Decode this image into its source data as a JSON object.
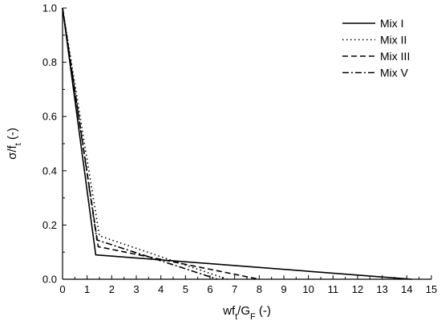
{
  "chart_data": {
    "type": "line",
    "title": "",
    "xlabel": "wf_t/G_F (-)",
    "ylabel": "σ/f_t (-)",
    "xlim": [
      0,
      15
    ],
    "ylim": [
      0,
      1.0
    ],
    "x_ticks": [
      "0",
      "1",
      "2",
      "3",
      "4",
      "5",
      "6",
      "7",
      "8",
      "9",
      "10",
      "11",
      "12",
      "13",
      "14",
      "15"
    ],
    "y_ticks": [
      "0.0",
      "0.2",
      "0.4",
      "0.6",
      "0.8",
      "1.0"
    ],
    "legend_position": "top-right",
    "grid": false,
    "series": [
      {
        "name": "Mix I",
        "style": "solid",
        "x": [
          0,
          1.35,
          14.2
        ],
        "y": [
          1.0,
          0.09,
          0.0
        ]
      },
      {
        "name": "Mix II",
        "style": "dotted",
        "x": [
          0,
          1.5,
          6.7
        ],
        "y": [
          1.0,
          0.16,
          0.0
        ]
      },
      {
        "name": "Mix III",
        "style": "dashed",
        "x": [
          0,
          1.45,
          8.0
        ],
        "y": [
          1.0,
          0.12,
          0.0
        ]
      },
      {
        "name": "Mix V",
        "style": "dashdot",
        "x": [
          0,
          1.4,
          6.3
        ],
        "y": [
          1.0,
          0.145,
          0.0
        ]
      }
    ]
  }
}
